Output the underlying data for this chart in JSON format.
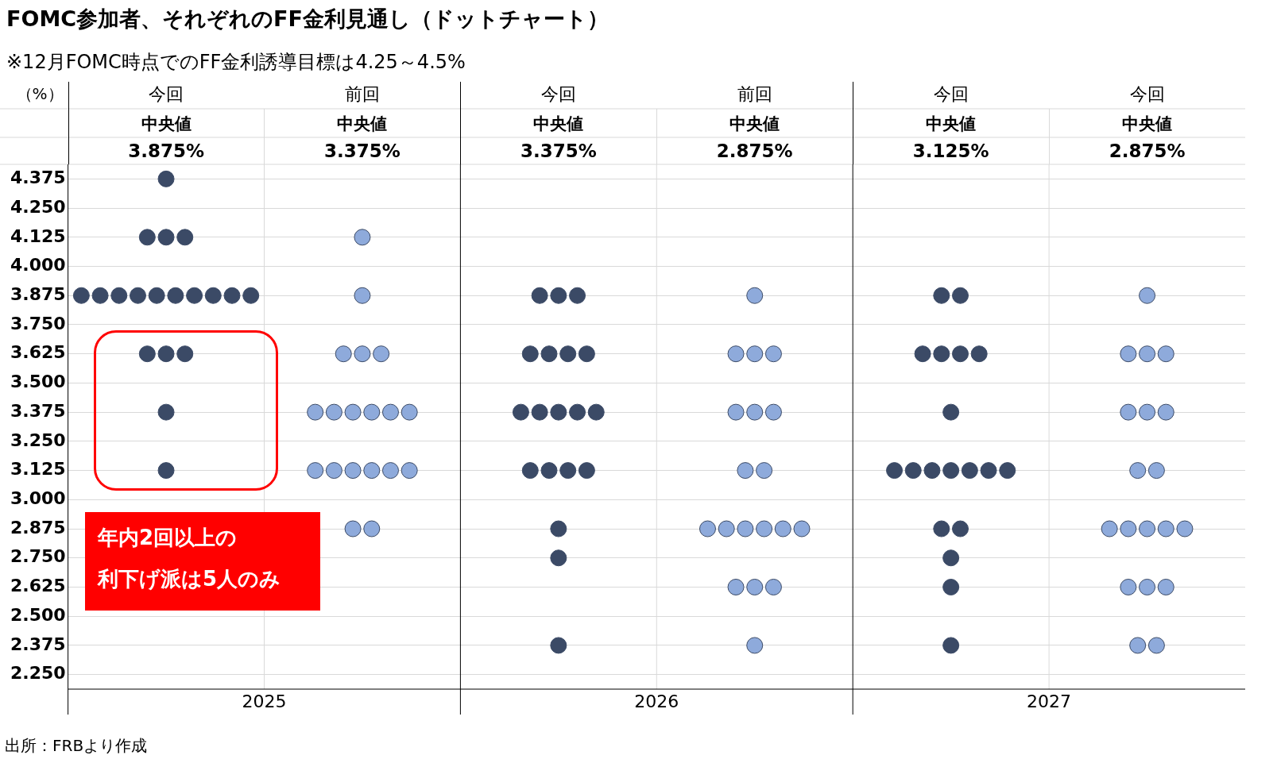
{
  "chart_data": {
    "type": "scatter",
    "title": "FOMC参加者、それぞれのFF金利見通し（ドットチャート）",
    "subtitle": "※12月FOMC時点でのFF金利誘導目標は4.25～4.5%",
    "ylabel": "（%）",
    "categories": [
      "今回",
      "前回",
      "今回",
      "前回",
      "今回",
      "今回"
    ],
    "series": [
      {
        "colors": [
          "#3b4a66",
          "#8eaadb",
          "#3b4a66",
          "#8eaadb",
          "#3b4a66",
          "#8eaadb"
        ],
        "values": [
          4.375,
          4.125,
          3.875,
          3.875,
          3.875,
          3.875
        ]
      },
      {
        "colors": [
          "#3b4a66",
          "#8eaadb",
          "#3b4a66",
          "#8eaadb",
          "#3b4a66",
          "#8eaadb"
        ],
        "values": [
          4.125,
          3.875,
          3.875,
          3.625,
          3.875,
          3.625
        ]
      },
      {
        "colors": [
          "#3b4a66",
          "#8eaadb",
          "#3b4a66",
          "#8eaadb",
          "#3b4a66",
          "#8eaadb"
        ],
        "values": [
          4.125,
          3.625,
          3.875,
          3.625,
          3.625,
          3.625
        ]
      },
      {
        "colors": [
          "#3b4a66",
          "#8eaadb",
          "#3b4a66",
          "#8eaadb",
          "#3b4a66",
          "#8eaadb"
        ],
        "values": [
          4.125,
          3.625,
          3.625,
          3.625,
          3.625,
          3.625
        ]
      },
      {
        "colors": [
          "#3b4a66",
          "#8eaadb",
          "#3b4a66",
          "#8eaadb",
          "#3b4a66",
          "#8eaadb"
        ],
        "values": [
          3.875,
          3.625,
          3.625,
          3.375,
          3.625,
          3.375
        ]
      },
      {
        "colors": [
          "#3b4a66",
          "#8eaadb",
          "#3b4a66",
          "#8eaadb",
          "#3b4a66",
          "#8eaadb"
        ],
        "values": [
          3.875,
          3.375,
          3.625,
          3.375,
          3.625,
          3.375
        ]
      },
      {
        "colors": [
          "#3b4a66",
          "#8eaadb",
          "#3b4a66",
          "#8eaadb",
          "#3b4a66",
          "#8eaadb"
        ],
        "values": [
          3.875,
          3.375,
          3.625,
          3.375,
          3.375,
          3.375
        ]
      },
      {
        "colors": [
          "#3b4a66",
          "#8eaadb",
          "#3b4a66",
          "#8eaadb",
          "#3b4a66",
          "#8eaadb"
        ],
        "values": [
          3.875,
          3.375,
          3.375,
          3.125,
          3.125,
          3.125
        ]
      },
      {
        "colors": [
          "#3b4a66",
          "#8eaadb",
          "#3b4a66",
          "#8eaadb",
          "#3b4a66",
          "#8eaadb"
        ],
        "values": [
          3.875,
          3.375,
          3.375,
          3.125,
          3.125,
          3.125
        ]
      },
      {
        "colors": [
          "#3b4a66",
          "#8eaadb",
          "#3b4a66",
          "#8eaadb",
          "#3b4a66",
          "#8eaadb"
        ],
        "values": [
          3.875,
          3.375,
          3.375,
          2.875,
          3.125,
          2.875
        ]
      },
      {
        "colors": [
          "#3b4a66",
          "#8eaadb",
          "#3b4a66",
          "#8eaadb",
          "#3b4a66",
          "#8eaadb"
        ],
        "values": [
          3.875,
          3.375,
          3.375,
          2.875,
          3.125,
          2.875
        ]
      },
      {
        "colors": [
          "#3b4a66",
          "#8eaadb",
          "#3b4a66",
          "#8eaadb",
          "#3b4a66",
          "#8eaadb"
        ],
        "values": [
          3.875,
          3.125,
          3.375,
          2.875,
          3.125,
          2.875
        ]
      },
      {
        "colors": [
          "#3b4a66",
          "#8eaadb",
          "#3b4a66",
          "#8eaadb",
          "#3b4a66",
          "#8eaadb"
        ],
        "values": [
          3.875,
          3.125,
          3.125,
          2.875,
          3.125,
          2.875
        ]
      },
      {
        "colors": [
          "#3b4a66",
          "#8eaadb",
          "#3b4a66",
          "#8eaadb",
          "#3b4a66",
          "#8eaadb"
        ],
        "values": [
          3.875,
          3.125,
          3.125,
          2.875,
          3.125,
          2.875
        ]
      },
      {
        "colors": [
          "#3b4a66",
          "#8eaadb",
          "#3b4a66",
          "#8eaadb",
          "#3b4a66",
          "#8eaadb"
        ],
        "values": [
          3.625,
          3.125,
          3.125,
          2.875,
          2.875,
          2.625
        ]
      },
      {
        "colors": [
          "#3b4a66",
          "#8eaadb",
          "#3b4a66",
          "#8eaadb",
          "#3b4a66",
          "#8eaadb"
        ],
        "values": [
          3.625,
          3.125,
          3.125,
          2.625,
          2.875,
          2.625
        ]
      },
      {
        "colors": [
          "#3b4a66",
          "#8eaadb",
          "#3b4a66",
          "#8eaadb",
          "#3b4a66",
          "#8eaadb"
        ],
        "values": [
          3.625,
          3.125,
          2.875,
          2.625,
          2.75,
          2.625
        ]
      },
      {
        "colors": [
          "#3b4a66",
          "#8eaadb",
          "#3b4a66",
          "#8eaadb",
          "#3b4a66",
          "#8eaadb"
        ],
        "values": [
          3.375,
          2.875,
          2.75,
          2.625,
          2.625,
          2.375
        ]
      },
      {
        "colors": [
          "#3b4a66",
          "#8eaadb",
          "#3b4a66",
          "#8eaadb",
          "#3b4a66",
          "#8eaadb"
        ],
        "values": [
          3.125,
          2.875,
          2.375,
          2.375,
          2.375,
          2.375
        ]
      }
    ],
    "ylim": [
      2.1875,
      4.4375
    ],
    "yticks": [
      {
        "value": 2.25,
        "label": "2.250"
      },
      {
        "value": 2.375,
        "label": "2.375"
      },
      {
        "value": 2.5,
        "label": "2.500"
      },
      {
        "value": 2.625,
        "label": "2.625"
      },
      {
        "value": 2.75,
        "label": "2.750"
      },
      {
        "value": 2.875,
        "label": "2.875"
      },
      {
        "value": 3.0,
        "label": "3.000"
      },
      {
        "value": 3.125,
        "label": "3.125"
      },
      {
        "value": 3.25,
        "label": "3.250"
      },
      {
        "value": 3.375,
        "label": "3.375"
      },
      {
        "value": 3.5,
        "label": "3.500"
      },
      {
        "value": 3.625,
        "label": "3.625"
      },
      {
        "value": 3.75,
        "label": "3.750"
      },
      {
        "value": 3.875,
        "label": "3.875"
      },
      {
        "value": 4.0,
        "label": "4.000"
      },
      {
        "value": 4.125,
        "label": "4.125"
      },
      {
        "value": 4.25,
        "label": "4.250"
      },
      {
        "value": 4.375,
        "label": "4.375"
      }
    ],
    "grid": "y",
    "legend": false,
    "marker": "circle",
    "annotations": [
      "中央値\n3.875%",
      "中央値\n3.375%",
      "中央値\n3.375%",
      "中央値\n2.875%",
      "中央値\n3.125%",
      "中央値\n2.875%",
      "2025",
      "2026",
      "2027",
      "年内2回以上の利下げ派は5人のみ",
      "出所：FRBより作成"
    ]
  }
}
